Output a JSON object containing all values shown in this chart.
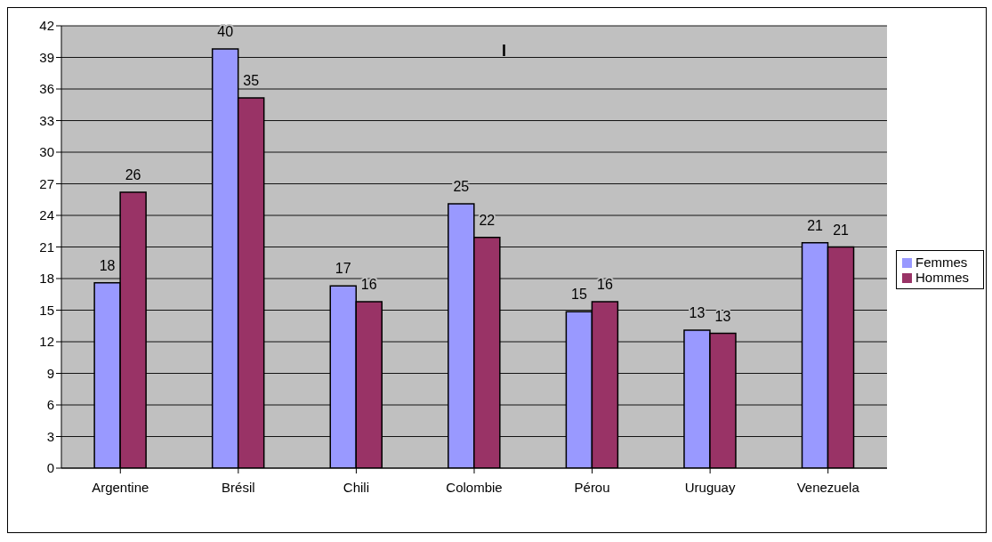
{
  "chart_data": {
    "type": "bar",
    "categories": [
      "Argentine",
      "Brésil",
      "Chili",
      "Colombie",
      "Pérou",
      "Uruguay",
      "Venezuela"
    ],
    "series": [
      {
        "name": "Femmes",
        "color": "#9999ff",
        "values": [
          17.6,
          39.8,
          17.3,
          25.1,
          14.85,
          13.1,
          21.4
        ],
        "value_labels": [
          "18",
          "40",
          "17",
          "25",
          "15",
          "13",
          "21"
        ]
      },
      {
        "name": "Hommes",
        "color": "#993366",
        "values": [
          26.2,
          35.15,
          15.8,
          21.9,
          15.8,
          12.8,
          21.0
        ],
        "value_labels": [
          "26",
          "35",
          "16",
          "22",
          "16",
          "13",
          "21"
        ]
      }
    ],
    "ylim": [
      0,
      42
    ],
    "yticks": [
      0,
      3,
      6,
      9,
      12,
      15,
      18,
      21,
      24,
      27,
      30,
      33,
      36,
      39,
      42
    ],
    "grid": "y",
    "legend": "right",
    "annotations": [
      "I"
    ]
  }
}
